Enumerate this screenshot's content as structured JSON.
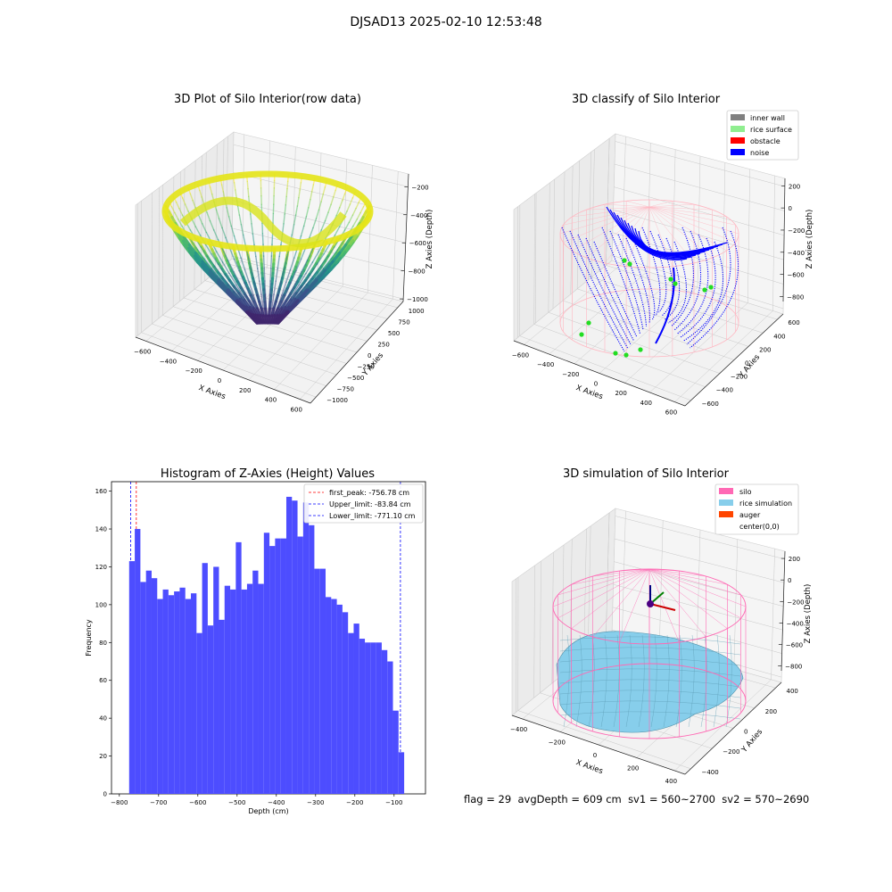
{
  "suptitle": "DJSAD13 2025-02-10 12:53:48",
  "footer": {
    "flag": "flag = 29",
    "avg": "avgDepth = 609 cm",
    "sv1": "sv1 = 560~2700",
    "sv2": "sv2 = 570~2690"
  },
  "chart_data": [
    {
      "type": "scatter",
      "title": "3D Plot of Silo Interior(row data)",
      "xlabel": "X Axies",
      "ylabel": "Y Axies",
      "zlabel": "Z Axies (Depth)",
      "x_ticks": [
        "−600",
        "−400",
        "−200",
        "0",
        "200",
        "400",
        "600"
      ],
      "y_ticks": [
        "−1000",
        "−750",
        "−500",
        "−250",
        "0",
        "250",
        "500",
        "750",
        "1000"
      ],
      "z_ticks": [
        "−1000",
        "−800",
        "−600",
        "−400",
        "−200"
      ],
      "colormap": "viridis",
      "xlim": [
        -600,
        600
      ],
      "ylim": [
        -1000,
        1000
      ],
      "zlim": [
        -1100,
        -100
      ]
    },
    {
      "type": "scatter",
      "title": "3D classify of Silo Interior",
      "xlabel": "X Axies",
      "ylabel": "Y Axies",
      "zlabel": "Z Axies (Depth)",
      "x_ticks": [
        "−600",
        "−400",
        "−200",
        "0",
        "200",
        "400",
        "600"
      ],
      "y_ticks": [
        "−600",
        "−400",
        "−200",
        "0",
        "200",
        "400",
        "600"
      ],
      "z_ticks": [
        "−800",
        "−600",
        "−400",
        "−200",
        "0",
        "200"
      ],
      "legend": [
        {
          "label": "inner wall",
          "color": "#808080"
        },
        {
          "label": "rice surface",
          "color": "#90ee90"
        },
        {
          "label": "obstacle",
          "color": "#ff0000"
        },
        {
          "label": "noise",
          "color": "#0000ff"
        }
      ],
      "legend_position": "top-right",
      "colors": {
        "wireframe": "#ffb6c1",
        "noise": "#0000ff",
        "rice": "#22dd22"
      }
    },
    {
      "type": "bar",
      "title": "Histogram of Z-Axies (Height) Values",
      "xlabel": "Depth (cm)",
      "ylabel": "Frequency",
      "xlim": [
        -820,
        -20
      ],
      "ylim": [
        0,
        165
      ],
      "x_ticks": [
        -800,
        -700,
        -600,
        -500,
        -400,
        -300,
        -200,
        -100
      ],
      "y_ticks": [
        0,
        20,
        40,
        60,
        80,
        100,
        120,
        140,
        160
      ],
      "bin_start": -775,
      "bin_width": 14.3,
      "values": [
        123,
        140,
        112,
        118,
        114,
        103,
        108,
        105,
        107,
        109,
        103,
        106,
        85,
        122,
        89,
        120,
        92,
        110,
        108,
        133,
        108,
        111,
        118,
        111,
        138,
        131,
        135,
        135,
        157,
        155,
        136,
        154,
        142,
        119,
        119,
        104,
        103,
        100,
        96,
        85,
        90,
        82,
        80,
        80,
        80,
        76,
        70,
        44,
        22
      ],
      "bar_color": "#4d4dff",
      "lines": [
        {
          "label": "first_peak: -756.78 cm",
          "value": -756.78,
          "color": "#ff0000"
        },
        {
          "label": "Upper_limit: -83.84 cm",
          "value": -83.84,
          "color": "#0000ff"
        },
        {
          "label": "Lower_limit: -771.10 cm",
          "value": -771.1,
          "color": "#0000ff"
        }
      ],
      "legend_position": "top-right"
    },
    {
      "type": "area",
      "title": "3D simulation of Silo Interior",
      "xlabel": "X Axies",
      "ylabel": "Y Axies",
      "zlabel": "Z Axies (Depth)",
      "x_ticks": [
        "−400",
        "−200",
        "0",
        "200",
        "400"
      ],
      "y_ticks": [
        "−400",
        "−200",
        "0",
        "200",
        "400"
      ],
      "z_ticks": [
        "−800",
        "−600",
        "−400",
        "−200",
        "0",
        "200"
      ],
      "legend": [
        {
          "label": "silo",
          "color": "#ff69b4"
        },
        {
          "label": "rice simulation",
          "color": "#87ceeb"
        },
        {
          "label": "auger",
          "color": "#ff4500"
        },
        {
          "label": "center(0,0)",
          "color": ""
        }
      ],
      "legend_position": "top-right",
      "colors": {
        "silo": "#ff69b4",
        "rice": "#87ceeb",
        "auger": "#ff4500"
      }
    }
  ]
}
